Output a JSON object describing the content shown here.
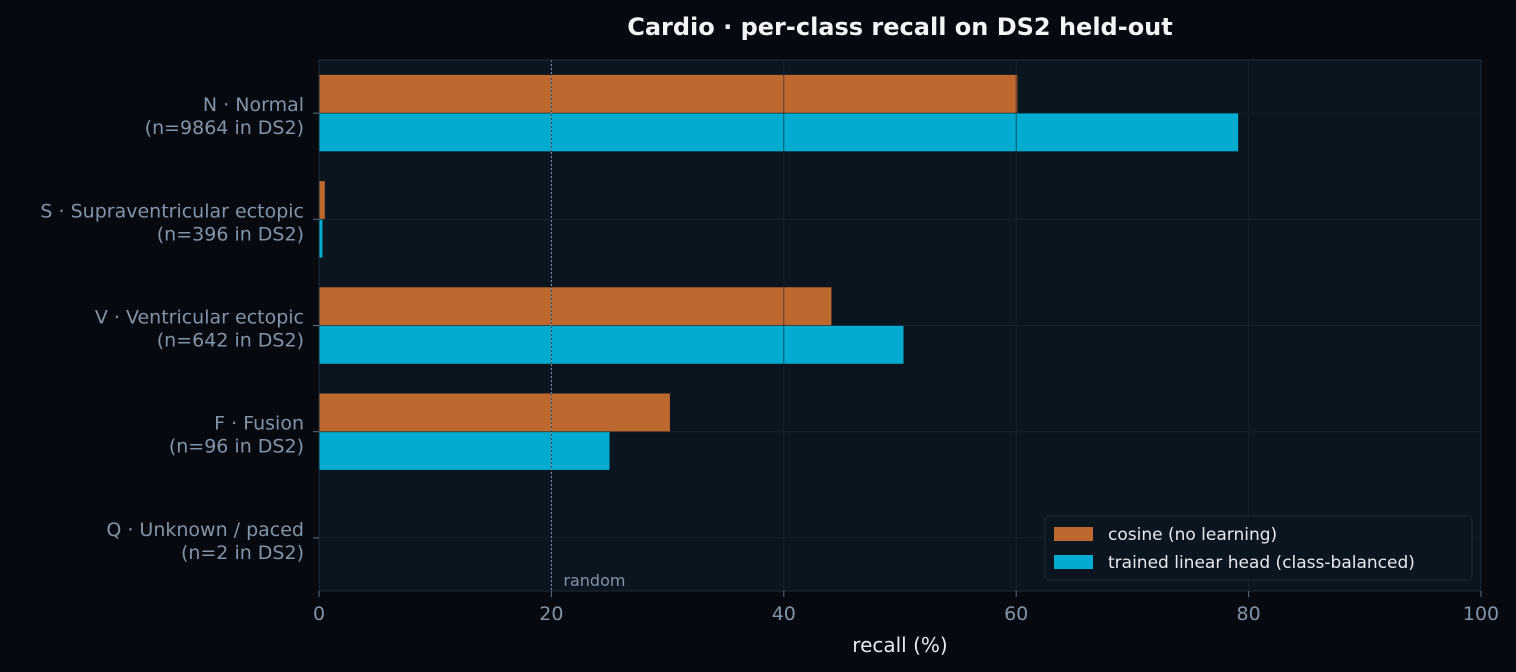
{
  "chart_data": {
    "type": "bar",
    "orientation": "horizontal",
    "title": "Cardio · per-class recall on DS2 held-out",
    "xlabel": "recall (%)",
    "ylabel": "",
    "xlim": [
      0,
      100
    ],
    "xticks": [
      0,
      20,
      40,
      60,
      80,
      100
    ],
    "grid": true,
    "legend_position": "lower-right",
    "categories": [
      [
        "N · Normal",
        "(n=9864 in DS2)"
      ],
      [
        "S · Supraventricular ectopic",
        "(n=396 in DS2)"
      ],
      [
        "V · Ventricular ectopic",
        "(n=642 in DS2)"
      ],
      [
        "F · Fusion",
        "(n=96 in DS2)"
      ],
      [
        "Q · Unknown / paced",
        "(n=2 in DS2)"
      ]
    ],
    "series": [
      {
        "name": "cosine (no learning)",
        "color": "#bd682e",
        "values": [
          60.1,
          0.5,
          44.1,
          30.2,
          0
        ]
      },
      {
        "name": "trained linear head (class-balanced)",
        "color": "#02abd0",
        "values": [
          79.1,
          0.3,
          50.3,
          25.0,
          0
        ]
      }
    ],
    "reference_line": {
      "x": 20,
      "label": "random"
    }
  }
}
